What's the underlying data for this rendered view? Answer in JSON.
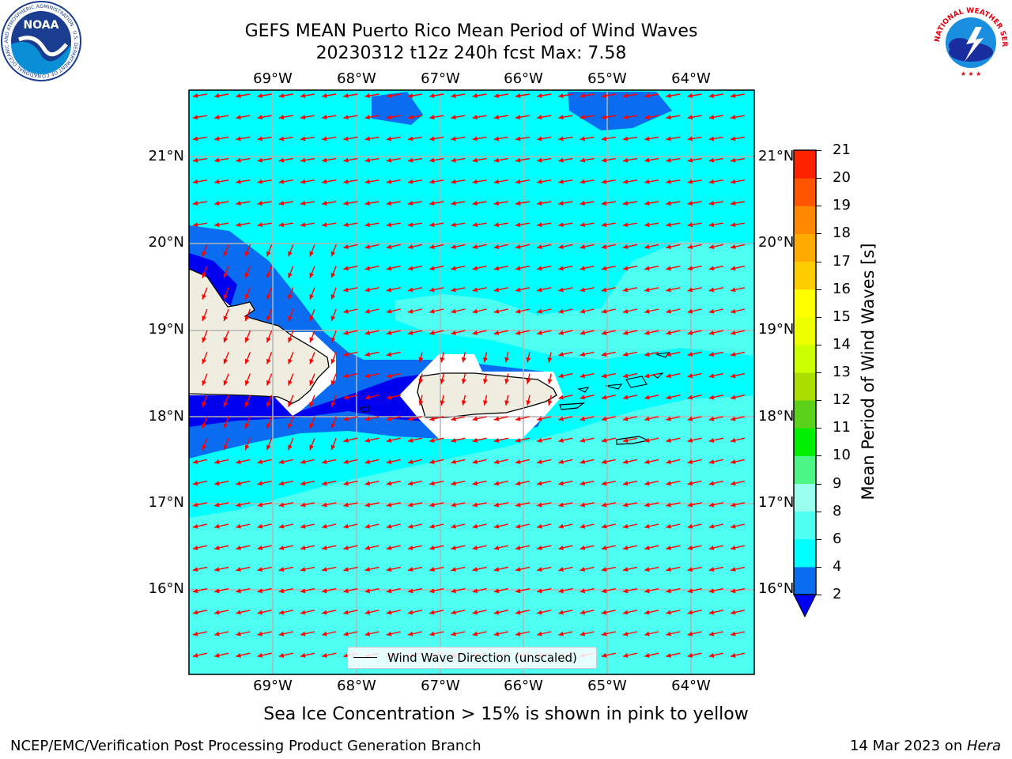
{
  "header": {
    "title_line1": "GEFS MEAN Puerto Rico Mean Period of Wind Waves",
    "title_line2": "20230312 t12z 240h fcst   Max: 7.58"
  },
  "logos": {
    "left": "NOAA",
    "left_ring": "NATIONAL OCEANIC AND ATMOSPHERIC ADMINISTRATION · U.S. DEPARTMENT OF COMMERCE",
    "right_ring": "NATIONAL WEATHER SERVICE"
  },
  "map": {
    "lon_labels": [
      "69°W",
      "68°W",
      "67°W",
      "66°W",
      "65°W",
      "64°W"
    ],
    "lat_labels": [
      "21°N",
      "20°N",
      "19°N",
      "18°N",
      "17°N",
      "16°N"
    ],
    "legend_label": "Wind Wave Direction (unscaled)",
    "colors": {
      "land": "#efece0",
      "band_2_4": "#0a6cf0",
      "band_4_6": "#00ffff",
      "band_6_8": "#4dfff0",
      "band_8_9": "#9bfff0",
      "below_2": "#0000f0",
      "arrow": "#ff0000",
      "grid": "#b4b4b4"
    }
  },
  "colorbar": {
    "label": "Mean Period of Wind Waves [s]",
    "ticks": [
      "2",
      "4",
      "6",
      "8",
      "9",
      "10",
      "11",
      "12",
      "13",
      "14",
      "15",
      "16",
      "17",
      "18",
      "19",
      "20",
      "21"
    ],
    "colors": [
      "#0a6cf0",
      "#00ffff",
      "#4dfff0",
      "#9bfff0",
      "#4df585",
      "#00ee00",
      "#5cd11a",
      "#aadd00",
      "#ccff00",
      "#eeff00",
      "#ffff00",
      "#ffcc00",
      "#ffaa00",
      "#ff8800",
      "#ff5500",
      "#ff2200"
    ],
    "extend_color": "#0000f0"
  },
  "subcaption": "Sea Ice Concentration > 15% is shown in pink to yellow",
  "footer": {
    "left": "NCEP/EMC/Verification Post Processing Product Generation Branch",
    "right_prefix": "14 Mar 2023 on ",
    "right_host": "Hera"
  }
}
